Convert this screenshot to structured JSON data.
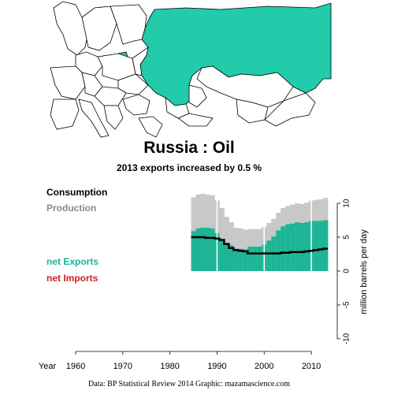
{
  "header": {
    "title": "Russia :  Oil",
    "subtitle": "2013 exports increased by 0.5 %"
  },
  "legend": {
    "consumption": "Consumption",
    "production": "Production",
    "net_exports": "net Exports",
    "net_imports": "net Imports"
  },
  "credit": "Data: BP Statistical Review 2014    Graphic: mazamascience.com",
  "colors": {
    "map_highlight": "#22cbaa",
    "net_exports": "#1cb596",
    "production": "#c8c8c8",
    "consumption": "#000000",
    "net_imports": "#cc2222"
  },
  "chart_data": {
    "type": "area",
    "title": "Russia :  Oil",
    "subtitle": "2013 exports increased by 0.5 %",
    "ylabel": "million barrels per day",
    "xlabel": "Year",
    "xlim": [
      1960,
      2013
    ],
    "ylim": [
      -10,
      10
    ],
    "x_ticks": [
      1960,
      1970,
      1980,
      1990,
      2000,
      2010
    ],
    "y_ticks": [
      -10,
      -5,
      0,
      5,
      10
    ],
    "x": [
      1985,
      1986,
      1987,
      1988,
      1989,
      1990,
      1991,
      1992,
      1993,
      1994,
      1995,
      1996,
      1997,
      1998,
      1999,
      2000,
      2001,
      2002,
      2003,
      2004,
      2005,
      2006,
      2007,
      2008,
      2009,
      2010,
      2011,
      2012,
      2013
    ],
    "series": [
      {
        "name": "Production",
        "values": [
          10.9,
          11.3,
          11.4,
          11.3,
          11.2,
          10.4,
          9.3,
          8.0,
          7.2,
          6.4,
          6.3,
          6.1,
          6.2,
          6.2,
          6.2,
          6.5,
          7.1,
          7.7,
          8.6,
          9.3,
          9.6,
          9.8,
          10.0,
          9.9,
          10.1,
          10.4,
          10.5,
          10.6,
          10.8
        ]
      },
      {
        "name": "Consumption",
        "values": [
          5.0,
          5.0,
          5.0,
          4.9,
          4.9,
          4.8,
          4.6,
          4.0,
          3.4,
          3.1,
          3.0,
          2.9,
          2.6,
          2.6,
          2.6,
          2.6,
          2.6,
          2.6,
          2.6,
          2.7,
          2.7,
          2.8,
          2.8,
          2.8,
          2.9,
          3.0,
          3.1,
          3.2,
          3.3
        ]
      },
      {
        "name": "net Exports",
        "values": [
          5.9,
          6.3,
          6.4,
          6.4,
          6.3,
          5.6,
          4.7,
          4.0,
          3.8,
          3.3,
          3.3,
          3.2,
          3.6,
          3.6,
          3.6,
          3.9,
          4.5,
          5.1,
          6.0,
          6.6,
          6.9,
          7.0,
          7.2,
          7.1,
          7.2,
          7.4,
          7.4,
          7.4,
          7.5
        ]
      }
    ],
    "grid": false,
    "legend_position": "left"
  }
}
